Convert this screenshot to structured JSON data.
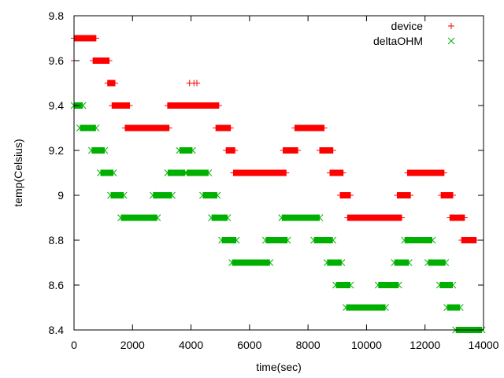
{
  "chart_data": {
    "type": "scatter",
    "xlabel": "time(sec)",
    "ylabel": "temp(Celsius)",
    "xlim": [
      0,
      14000
    ],
    "ylim": [
      8.4,
      9.8
    ],
    "grid": false,
    "legend_position": "top-right",
    "x_ticks": [
      {
        "value": 0,
        "label": "0"
      },
      {
        "value": 2000,
        "label": "2000"
      },
      {
        "value": 4000,
        "label": "4000"
      },
      {
        "value": 6000,
        "label": "6000"
      },
      {
        "value": 8000,
        "label": "8000"
      },
      {
        "value": 10000,
        "label": "10000"
      },
      {
        "value": 12000,
        "label": "12000"
      },
      {
        "value": 14000,
        "label": "14000"
      }
    ],
    "y_ticks": [
      {
        "value": 8.4,
        "label": "8.4"
      },
      {
        "value": 8.6,
        "label": "8.6"
      },
      {
        "value": 8.8,
        "label": "8.8"
      },
      {
        "value": 9.0,
        "label": "9"
      },
      {
        "value": 9.2,
        "label": "9.2"
      },
      {
        "value": 9.4,
        "label": "9.4"
      },
      {
        "value": 9.6,
        "label": "9.6"
      },
      {
        "value": 9.8,
        "label": "9.8"
      }
    ],
    "series": [
      {
        "name": "device",
        "marker": "plus",
        "color": "#ff0000",
        "runs": [
          {
            "y": 9.7,
            "x_start": 0,
            "x_end": 750
          },
          {
            "y": 9.6,
            "x_start": 650,
            "x_end": 1200
          },
          {
            "y": 9.5,
            "x_start": 1150,
            "x_end": 1400
          },
          {
            "y": 9.4,
            "x_start": 1300,
            "x_end": 1900
          },
          {
            "y": 9.3,
            "x_start": 1750,
            "x_end": 3250
          },
          {
            "y": 9.4,
            "x_start": 3200,
            "x_end": 4950
          },
          {
            "y": 9.3,
            "x_start": 4850,
            "x_end": 5350
          },
          {
            "y": 9.2,
            "x_start": 5200,
            "x_end": 5500
          },
          {
            "y": 9.1,
            "x_start": 5450,
            "x_end": 7250
          },
          {
            "y": 9.2,
            "x_start": 7150,
            "x_end": 7650
          },
          {
            "y": 9.3,
            "x_start": 7550,
            "x_end": 8550
          },
          {
            "y": 9.2,
            "x_start": 8400,
            "x_end": 8850
          },
          {
            "y": 9.1,
            "x_start": 8750,
            "x_end": 9200
          },
          {
            "y": 9.0,
            "x_start": 9100,
            "x_end": 9450
          },
          {
            "y": 8.9,
            "x_start": 9350,
            "x_end": 11200
          },
          {
            "y": 9.0,
            "x_start": 11050,
            "x_end": 11500
          },
          {
            "y": 9.1,
            "x_start": 11400,
            "x_end": 12650
          },
          {
            "y": 9.0,
            "x_start": 12550,
            "x_end": 12950
          },
          {
            "y": 8.9,
            "x_start": 12850,
            "x_end": 13350
          },
          {
            "y": 8.8,
            "x_start": 13250,
            "x_end": 13750
          }
        ],
        "points": [
          {
            "x": 0,
            "y": 9.6
          },
          {
            "x": 3950,
            "y": 9.5
          },
          {
            "x": 4100,
            "y": 9.5
          },
          {
            "x": 4200,
            "y": 9.5
          }
        ]
      },
      {
        "name": "deltaOHM",
        "marker": "cross",
        "color": "#00b000",
        "runs": [
          {
            "y": 9.4,
            "x_start": 0,
            "x_end": 300
          },
          {
            "y": 9.3,
            "x_start": 200,
            "x_end": 750
          },
          {
            "y": 9.2,
            "x_start": 600,
            "x_end": 1050
          },
          {
            "y": 9.1,
            "x_start": 900,
            "x_end": 1350
          },
          {
            "y": 9.0,
            "x_start": 1250,
            "x_end": 1700
          },
          {
            "y": 8.9,
            "x_start": 1600,
            "x_end": 2850
          },
          {
            "y": 9.0,
            "x_start": 2700,
            "x_end": 3350
          },
          {
            "y": 9.1,
            "x_start": 3200,
            "x_end": 3800
          },
          {
            "y": 9.2,
            "x_start": 3600,
            "x_end": 4050
          },
          {
            "y": 9.1,
            "x_start": 3850,
            "x_end": 4600
          },
          {
            "y": 9.0,
            "x_start": 4400,
            "x_end": 4900
          },
          {
            "y": 8.9,
            "x_start": 4700,
            "x_end": 5250
          },
          {
            "y": 8.8,
            "x_start": 5050,
            "x_end": 5550
          },
          {
            "y": 8.7,
            "x_start": 5400,
            "x_end": 6700
          },
          {
            "y": 8.8,
            "x_start": 6550,
            "x_end": 7300
          },
          {
            "y": 8.9,
            "x_start": 7100,
            "x_end": 8400
          },
          {
            "y": 8.8,
            "x_start": 8200,
            "x_end": 8850
          },
          {
            "y": 8.7,
            "x_start": 8650,
            "x_end": 9150
          },
          {
            "y": 8.6,
            "x_start": 8950,
            "x_end": 9450
          },
          {
            "y": 8.5,
            "x_start": 9300,
            "x_end": 10650
          },
          {
            "y": 8.6,
            "x_start": 10400,
            "x_end": 11100
          },
          {
            "y": 8.7,
            "x_start": 10950,
            "x_end": 11450
          },
          {
            "y": 8.8,
            "x_start": 11300,
            "x_end": 12250
          },
          {
            "y": 8.7,
            "x_start": 12100,
            "x_end": 12700
          },
          {
            "y": 8.6,
            "x_start": 12500,
            "x_end": 12950
          },
          {
            "y": 8.5,
            "x_start": 12750,
            "x_end": 13200
          },
          {
            "y": 8.4,
            "x_start": 13050,
            "x_end": 13950
          }
        ],
        "points": []
      }
    ]
  }
}
